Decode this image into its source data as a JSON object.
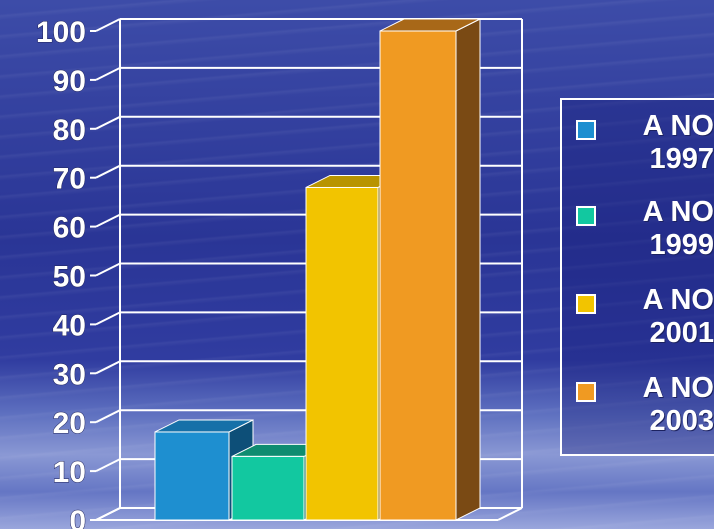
{
  "chart_data": {
    "type": "bar",
    "style": "3d",
    "title": "",
    "xlabel": "",
    "ylabel": "",
    "ylim": [
      0,
      100
    ],
    "yticks": [
      "0",
      "10",
      "20",
      "30",
      "40",
      "50",
      "60",
      "70",
      "80",
      "90",
      "100"
    ],
    "grid": true,
    "legend_position": "right",
    "series": [
      {
        "name": "A NO 1997",
        "value": 18,
        "color": "#1e8fd0",
        "side_color": "#0d4f78",
        "top_color": "#1670a8"
      },
      {
        "name": "A NO 1999",
        "value": 13,
        "color": "#12c8a0",
        "side_color": "#0a6b58",
        "top_color": "#0e8c70"
      },
      {
        "name": "A NO 2001",
        "value": 68,
        "color": "#f2c400",
        "side_color": "#8a6b00",
        "top_color": "#b89400"
      },
      {
        "name": "A NO 2003",
        "value": 100,
        "color": "#f09a22",
        "side_color": "#7a4a14",
        "top_color": "#a86818"
      }
    ]
  },
  "legend": {
    "items": [
      {
        "label": "A NO\n1997",
        "color": "#1e8fd0"
      },
      {
        "label": "A NO\n1999",
        "color": "#12c8a0"
      },
      {
        "label": "A NO\n2001",
        "color": "#f2c400"
      },
      {
        "label": "A NO\n2003",
        "color": "#f09a22"
      }
    ]
  }
}
